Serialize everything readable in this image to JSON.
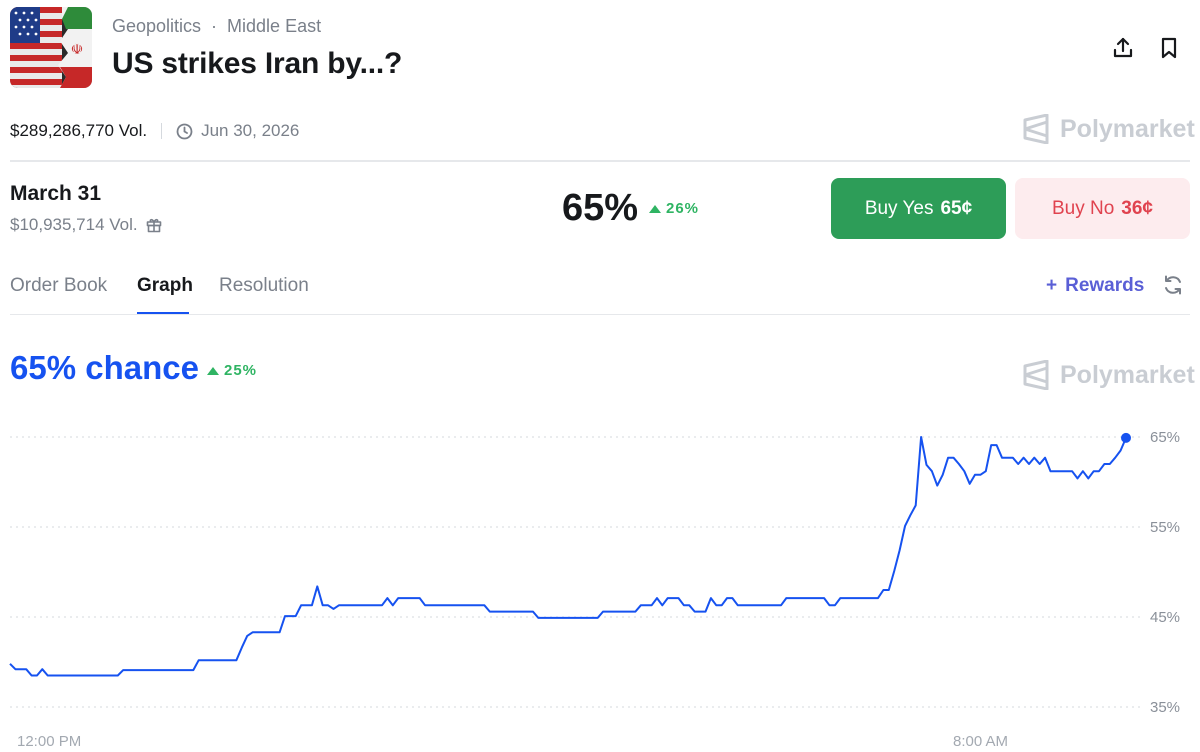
{
  "header": {
    "category": "Geopolitics",
    "separator": "·",
    "subcategory": "Middle East",
    "title": "US strikes Iran by...?",
    "share_icon": "share-icon",
    "bookmark_icon": "bookmark-icon"
  },
  "meta": {
    "volume": "$289,286,770 Vol.",
    "end_date": "Jun 30, 2026",
    "clock_icon": "clock-icon"
  },
  "brand": {
    "name": "Polymarket"
  },
  "outcome": {
    "date": "March 31",
    "volume": "$10,935,714 Vol.",
    "gift_icon": "gift-icon",
    "probability": "65%",
    "change": "26%"
  },
  "buttons": {
    "yes_label": "Buy Yes",
    "yes_price": "65¢",
    "no_label": "Buy No",
    "no_price": "36¢"
  },
  "tabs": [
    {
      "label": "Order Book",
      "active": false
    },
    {
      "label": "Graph",
      "active": true
    },
    {
      "label": "Resolution",
      "active": false
    }
  ],
  "rewards": {
    "plus": "+",
    "label": "Rewards"
  },
  "chance": {
    "label": "65% chance",
    "change": "25%"
  },
  "colors": {
    "line": "#1652f0",
    "up": "#2fb463",
    "yes": "#2d9d58",
    "no_bg": "#fdecee",
    "no_text": "#e0434f",
    "rewards": "#5a5fd6"
  },
  "chart_data": {
    "type": "line",
    "ylim": [
      35,
      65
    ],
    "y_ticks": [
      "65%",
      "55%",
      "45%",
      "35%"
    ],
    "x_ticks": [
      "12:00 PM",
      "8:00 AM"
    ],
    "series": [
      {
        "values": [
          39.8,
          39.2,
          39.2,
          39.2,
          38.5,
          38.5,
          39.2,
          38.5,
          38.5,
          38.5,
          38.5,
          38.5,
          38.5,
          38.5,
          38.5,
          38.5,
          38.5,
          38.5,
          38.5,
          38.5,
          38.5,
          39.1,
          39.1,
          39.1,
          39.1,
          39.1,
          39.1,
          39.1,
          39.1,
          39.1,
          39.1,
          39.1,
          39.1,
          39.1,
          39.1,
          40.2,
          40.2,
          40.2,
          40.2,
          40.2,
          40.2,
          40.2,
          40.2,
          41.6,
          42.9,
          43.3,
          43.3,
          43.3,
          43.3,
          43.3,
          43.3,
          45.1,
          45.1,
          45.1,
          46.3,
          46.3,
          46.3,
          48.4,
          46.3,
          46.3,
          45.9,
          46.3,
          46.3,
          46.3,
          46.3,
          46.3,
          46.3,
          46.3,
          46.3,
          46.3,
          47.1,
          46.3,
          47.1,
          47.1,
          47.1,
          47.1,
          47.1,
          46.3,
          46.3,
          46.3,
          46.3,
          46.3,
          46.3,
          46.3,
          46.3,
          46.3,
          46.3,
          46.3,
          46.3,
          45.6,
          45.6,
          45.6,
          45.6,
          45.6,
          45.6,
          45.6,
          45.6,
          45.6,
          44.9,
          44.9,
          44.9,
          44.9,
          44.9,
          44.9,
          44.9,
          44.9,
          44.9,
          44.9,
          44.9,
          44.9,
          45.6,
          45.6,
          45.6,
          45.6,
          45.6,
          45.6,
          45.6,
          46.3,
          46.3,
          46.3,
          47.1,
          46.3,
          47.1,
          47.1,
          47.1,
          46.3,
          46.3,
          45.6,
          45.6,
          45.6,
          47.1,
          46.3,
          46.3,
          47.1,
          47.1,
          46.3,
          46.3,
          46.3,
          46.3,
          46.3,
          46.3,
          46.3,
          46.3,
          46.3,
          47.1,
          47.1,
          47.1,
          47.1,
          47.1,
          47.1,
          47.1,
          47.1,
          46.3,
          46.3,
          47.1,
          47.1,
          47.1,
          47.1,
          47.1,
          47.1,
          47.1,
          47.1,
          48.0,
          48.0,
          50.1,
          52.4,
          55.1,
          56.3,
          57.4,
          65.0,
          61.9,
          61.2,
          59.6,
          60.8,
          62.7,
          62.7,
          62.0,
          61.2,
          59.8,
          60.8,
          60.8,
          61.2,
          64.1,
          64.1,
          62.7,
          62.7,
          62.7,
          62.0,
          62.7,
          62.0,
          62.7,
          62.0,
          62.7,
          61.2,
          61.2,
          61.2,
          61.2,
          61.2,
          60.4,
          61.2,
          60.4,
          61.2,
          61.2,
          62.0,
          62.0,
          62.7,
          63.5,
          64.9
        ]
      }
    ]
  }
}
